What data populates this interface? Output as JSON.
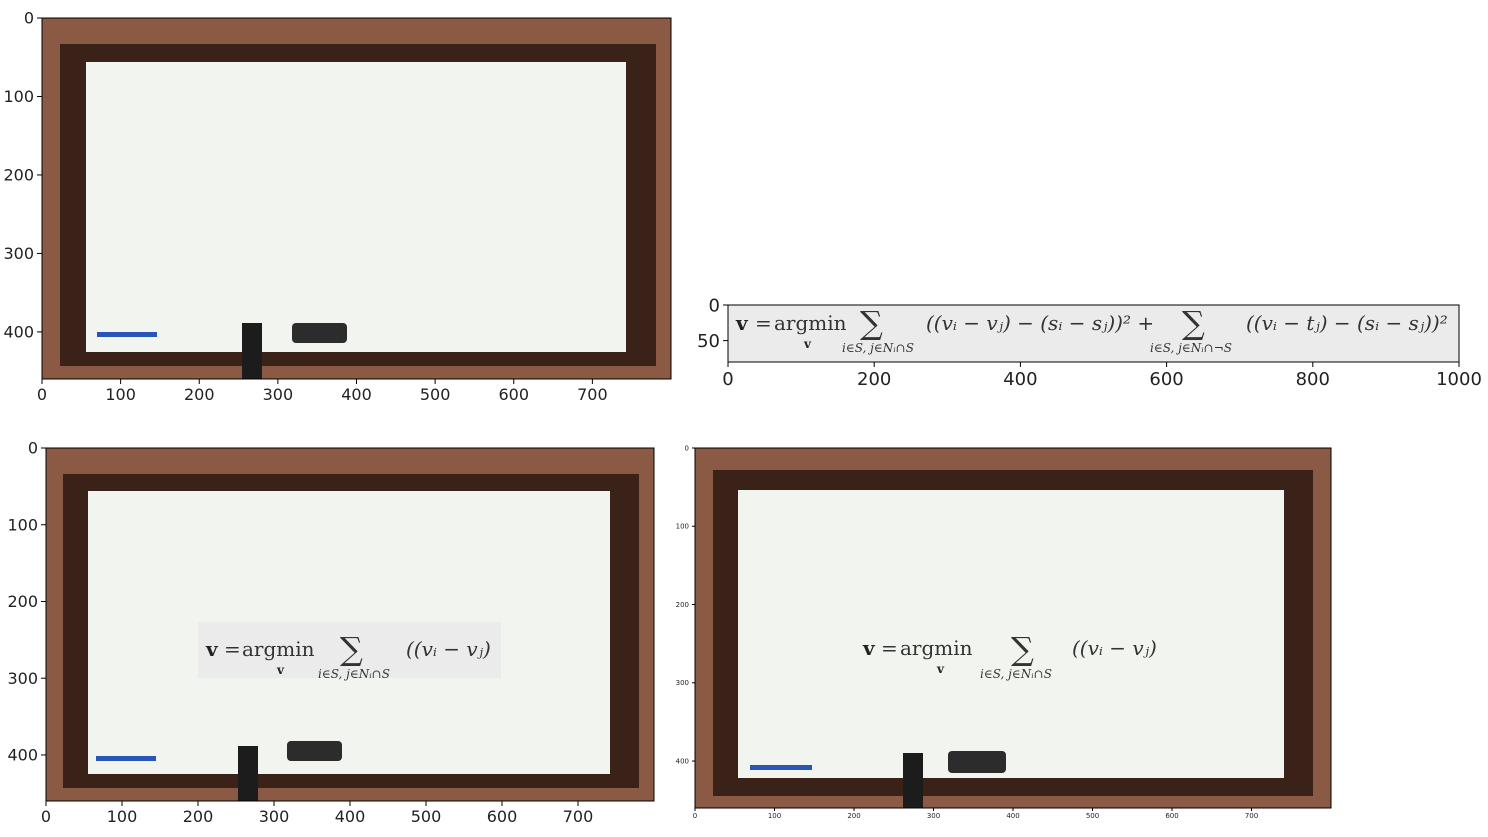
{
  "chart_data": [
    {
      "type": "image",
      "panel": "whiteboard-original",
      "xlim": [
        0,
        800
      ],
      "ylim": [
        460,
        0
      ],
      "x_ticks": [
        {
          "v": 0,
          "label": "0"
        },
        {
          "v": 100,
          "label": "100"
        },
        {
          "v": 200,
          "label": "200"
        },
        {
          "v": 300,
          "label": "300"
        },
        {
          "v": 400,
          "label": "400"
        },
        {
          "v": 500,
          "label": "500"
        },
        {
          "v": 600,
          "label": "600"
        },
        {
          "v": 700,
          "label": "700"
        }
      ],
      "y_ticks": [
        {
          "v": 0,
          "label": "0"
        },
        {
          "v": 100,
          "label": "100"
        },
        {
          "v": 200,
          "label": "200"
        },
        {
          "v": 300,
          "label": "300"
        },
        {
          "v": 400,
          "label": "400"
        }
      ]
    },
    {
      "type": "image",
      "panel": "equation-image",
      "xlim": [
        0,
        1000
      ],
      "ylim": [
        80,
        0
      ],
      "x_ticks": [
        {
          "v": 0,
          "label": "0"
        },
        {
          "v": 200,
          "label": "200"
        },
        {
          "v": 400,
          "label": "400"
        },
        {
          "v": 600,
          "label": "600"
        },
        {
          "v": 800,
          "label": "800"
        },
        {
          "v": 1000,
          "label": "1000"
        }
      ],
      "y_ticks": [
        {
          "v": 0,
          "label": "0"
        },
        {
          "v": 50,
          "label": "50"
        }
      ]
    },
    {
      "type": "image",
      "panel": "whiteboard-with-equation-patch",
      "xlim": [
        0,
        800
      ],
      "ylim": [
        460,
        0
      ],
      "x_ticks": [
        {
          "v": 0,
          "label": "0"
        },
        {
          "v": 100,
          "label": "100"
        },
        {
          "v": 200,
          "label": "200"
        },
        {
          "v": 300,
          "label": "300"
        },
        {
          "v": 400,
          "label": "400"
        },
        {
          "v": 500,
          "label": "500"
        },
        {
          "v": 600,
          "label": "600"
        },
        {
          "v": 700,
          "label": "700"
        }
      ],
      "y_ticks": [
        {
          "v": 0,
          "label": "0"
        },
        {
          "v": 100,
          "label": "100"
        },
        {
          "v": 200,
          "label": "200"
        },
        {
          "v": 300,
          "label": "300"
        },
        {
          "v": 400,
          "label": "400"
        }
      ]
    },
    {
      "type": "image",
      "panel": "whiteboard-blended-equation",
      "xlim": [
        0,
        800
      ],
      "ylim": [
        460,
        0
      ],
      "x_ticks": [
        {
          "v": 0,
          "label": "0"
        },
        {
          "v": 100,
          "label": "100"
        },
        {
          "v": 200,
          "label": "200"
        },
        {
          "v": 300,
          "label": "300"
        },
        {
          "v": 400,
          "label": "400"
        },
        {
          "v": 500,
          "label": "500"
        },
        {
          "v": 600,
          "label": "600"
        },
        {
          "v": 700,
          "label": "700"
        }
      ],
      "y_ticks": [
        {
          "v": 0,
          "label": "0"
        },
        {
          "v": 100,
          "label": "100"
        },
        {
          "v": 200,
          "label": "200"
        },
        {
          "v": 300,
          "label": "300"
        },
        {
          "v": 400,
          "label": "400"
        }
      ]
    }
  ],
  "equation": {
    "lhs": "v",
    "eq": "=",
    "argmin": "argmin",
    "argmin_sub": "v",
    "sigma": "∑",
    "sum1_sub": "i∈S, j∈Nᵢ∩S",
    "term1": "((vᵢ − vⱼ) − (sᵢ − sⱼ))² +",
    "sum2_sub": "i∈S, j∈Nᵢ∩¬S",
    "term2": "((vᵢ − tⱼ) − (sᵢ − sⱼ))²",
    "partial_term": "((vᵢ − vⱼ)"
  },
  "colors": {
    "wall": "#8a5a44",
    "frame": "#3a2218",
    "board": "#f2f5ef",
    "equation_bg": "#ebebeb"
  }
}
